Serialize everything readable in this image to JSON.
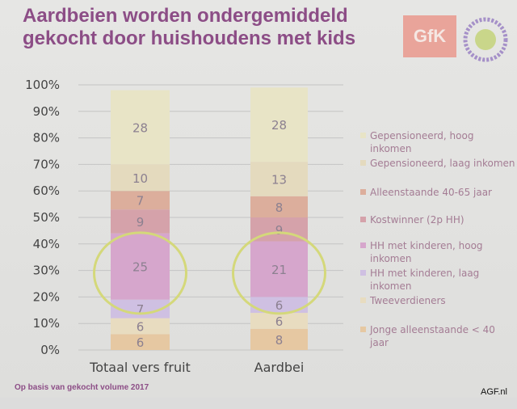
{
  "title_line1": "Aardbeien worden ondergemiddeld",
  "title_line2": "gekocht door huishoudens met kids",
  "logos": {
    "gfk": "GfK",
    "groenten_fruit_huis": "Groenten Fruit Huis"
  },
  "footnote": "Op basis van gekocht volume 2017",
  "watermark": "AGF.nl",
  "chart_data": {
    "type": "bar",
    "stacked": true,
    "categories": [
      "Totaal vers fruit",
      "Aardbei"
    ],
    "yticks": [
      "0%",
      "10%",
      "20%",
      "30%",
      "40%",
      "50%",
      "60%",
      "70%",
      "80%",
      "90%",
      "100%"
    ],
    "ylim": [
      0,
      100
    ],
    "grid": true,
    "legend_position": "right",
    "highlight": "circles around 'HH met kinderen' segments",
    "series": [
      {
        "name": "Jonge alleenstaande < 40 jaar",
        "values": [
          6,
          8
        ],
        "color": "#e6c8a2"
      },
      {
        "name": "Tweeverdieners",
        "values": [
          6,
          6
        ],
        "color": "#e8dcc0"
      },
      {
        "name": "HH met kinderen, laag inkomen",
        "values": [
          7,
          6
        ],
        "color": "#cfc0e2"
      },
      {
        "name": "HH met kinderen, hoog inkomen",
        "values": [
          25,
          21
        ],
        "color": "#d6a6cc"
      },
      {
        "name": "Kostwinner (2p HH)",
        "values": [
          9,
          9
        ],
        "color": "#d5a2aa"
      },
      {
        "name": "Alleenstaande 40-65 jaar",
        "values": [
          7,
          8
        ],
        "color": "#dcae9c"
      },
      {
        "name": "Gepensioneerd, laag inkomen",
        "values": [
          10,
          13
        ],
        "color": "#e4dabe"
      },
      {
        "name": "Gepensioneerd, hoog inkomen",
        "values": [
          28,
          28
        ],
        "color": "#e8e4c6"
      }
    ]
  }
}
